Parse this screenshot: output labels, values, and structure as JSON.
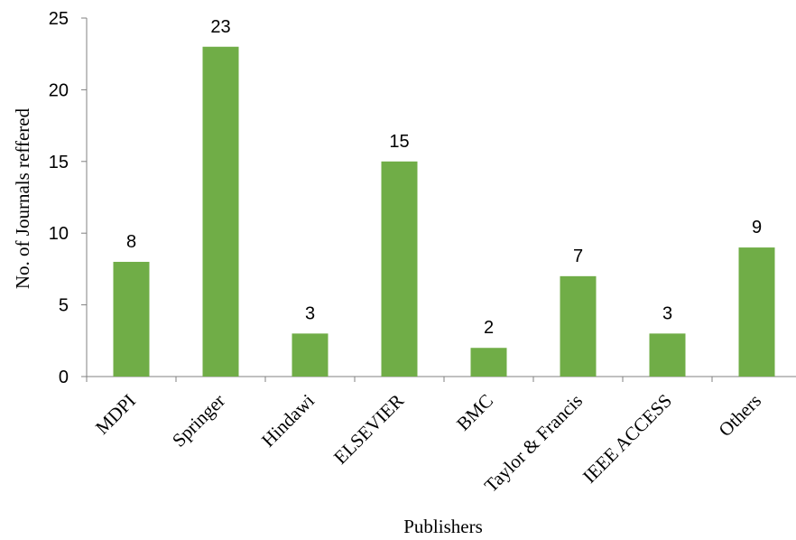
{
  "chart_data": {
    "type": "bar",
    "title": "",
    "xlabel": "Publishers",
    "ylabel": "No. of Journals reffered",
    "categories": [
      "MDPI",
      "Springer",
      "Hindawi",
      "ELSEVIER",
      "BMC",
      "Taylor & Francis",
      "IEEE ACCESS",
      "Others"
    ],
    "values": [
      8,
      23,
      3,
      15,
      2,
      7,
      3,
      9
    ],
    "ylim": [
      0,
      25
    ],
    "yticks": [
      0,
      5,
      10,
      15,
      20,
      25
    ],
    "grid": false,
    "legend": "none",
    "bar_color": "#70ad47"
  }
}
